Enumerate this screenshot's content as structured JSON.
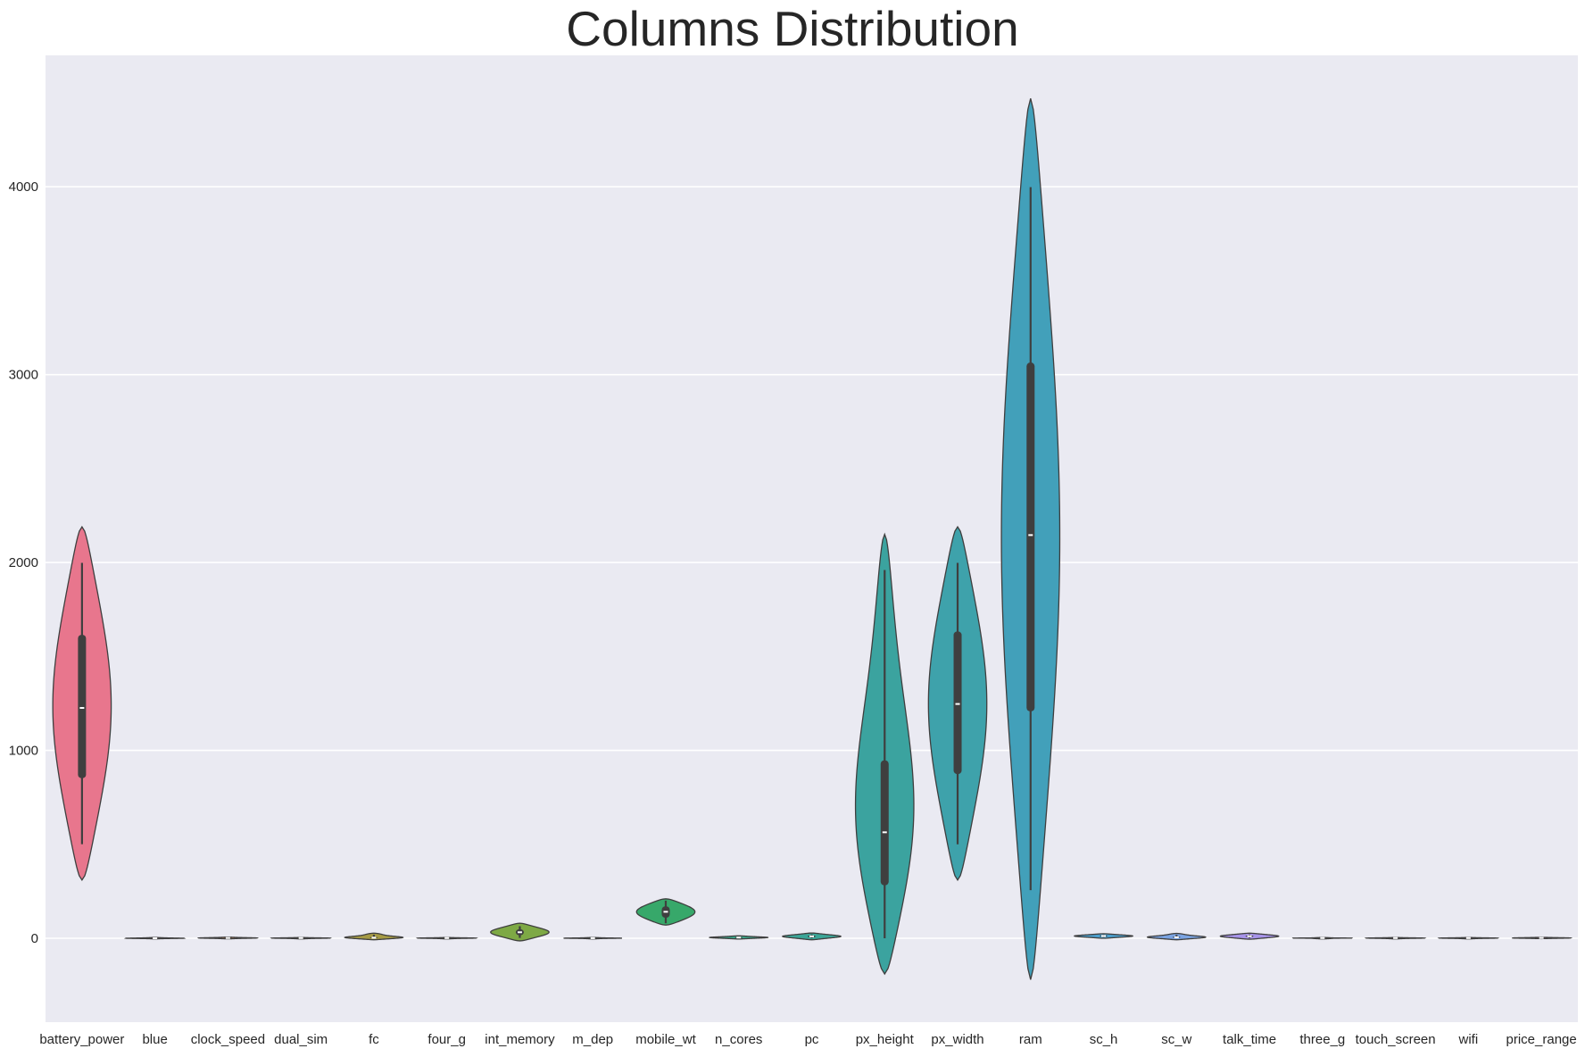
{
  "chart_data": {
    "type": "violin",
    "title": "Columns Distribution",
    "xlabel": "",
    "ylabel": "",
    "ylim": [
      -450,
      4700
    ],
    "yticks": [
      0,
      1000,
      2000,
      3000,
      4000
    ],
    "grid": true,
    "legend": "none",
    "categories": [
      "battery_power",
      "blue",
      "clock_speed",
      "dual_sim",
      "fc",
      "four_g",
      "int_memory",
      "m_dep",
      "mobile_wt",
      "n_cores",
      "pc",
      "px_height",
      "px_width",
      "ram",
      "sc_h",
      "sc_w",
      "talk_time",
      "three_g",
      "touch_screen",
      "wifi",
      "price_range"
    ],
    "series": [
      {
        "category": "battery_power",
        "color": "#e8768d",
        "min": 501,
        "q1": 852,
        "median": 1226,
        "q3": 1615,
        "max": 1998,
        "kde_min": 310,
        "kde_max": 2190
      },
      {
        "category": "blue",
        "color": "#d8847a",
        "min": 0,
        "q1": 0,
        "median": 0,
        "q3": 1,
        "max": 1,
        "kde_min": -3,
        "kde_max": 4
      },
      {
        "category": "clock_speed",
        "color": "#c98b5e",
        "min": 0.5,
        "q1": 0.7,
        "median": 1.5,
        "q3": 2.2,
        "max": 3.0,
        "kde_min": -3,
        "kde_max": 6
      },
      {
        "category": "dual_sim",
        "color": "#b79545",
        "min": 0,
        "q1": 0,
        "median": 1,
        "q3": 1,
        "max": 1,
        "kde_min": -3,
        "kde_max": 4
      },
      {
        "category": "fc",
        "color": "#a59a44",
        "min": 0,
        "q1": 1,
        "median": 3,
        "q3": 7,
        "max": 19,
        "kde_min": -8,
        "kde_max": 27
      },
      {
        "category": "four_g",
        "color": "#96a044",
        "min": 0,
        "q1": 0,
        "median": 1,
        "q3": 1,
        "max": 1,
        "kde_min": -3,
        "kde_max": 4
      },
      {
        "category": "int_memory",
        "color": "#7ea945",
        "min": 2,
        "q1": 16,
        "median": 32,
        "q3": 48,
        "max": 64,
        "kde_min": -14,
        "kde_max": 80
      },
      {
        "category": "m_dep",
        "color": "#4fb255",
        "min": 0.1,
        "q1": 0.2,
        "median": 0.5,
        "q3": 0.8,
        "max": 1.0,
        "kde_min": -3,
        "kde_max": 4
      },
      {
        "category": "mobile_wt",
        "color": "#37a86a",
        "min": 80,
        "q1": 109,
        "median": 141,
        "q3": 170,
        "max": 200,
        "kde_min": 70,
        "kde_max": 210
      },
      {
        "category": "n_cores",
        "color": "#39a88a",
        "min": 1,
        "q1": 3,
        "median": 4,
        "q3": 7,
        "max": 8,
        "kde_min": -4,
        "kde_max": 13
      },
      {
        "category": "pc",
        "color": "#3aa597",
        "min": 0,
        "q1": 5,
        "median": 10,
        "q3": 15,
        "max": 20,
        "kde_min": -8,
        "kde_max": 28
      },
      {
        "category": "px_height",
        "color": "#3ba39f",
        "min": 0,
        "q1": 282,
        "median": 564,
        "q3": 947,
        "max": 1960,
        "kde_min": -190,
        "kde_max": 2150
      },
      {
        "category": "px_width",
        "color": "#3ea2ab",
        "min": 500,
        "q1": 874,
        "median": 1247,
        "q3": 1633,
        "max": 1998,
        "kde_min": 310,
        "kde_max": 2190
      },
      {
        "category": "ram",
        "color": "#42a0ba",
        "min": 256,
        "q1": 1208,
        "median": 2146,
        "q3": 3064,
        "max": 3998,
        "kde_min": -220,
        "kde_max": 4470
      },
      {
        "category": "sc_h",
        "color": "#4ba0cf",
        "min": 5,
        "q1": 9,
        "median": 12,
        "q3": 16,
        "max": 19,
        "kde_min": 0,
        "kde_max": 24
      },
      {
        "category": "sc_w",
        "color": "#7aa3e2",
        "min": 0,
        "q1": 2,
        "median": 5,
        "q3": 9,
        "max": 18,
        "kde_min": -8,
        "kde_max": 26
      },
      {
        "category": "talk_time",
        "color": "#a794e9",
        "min": 2,
        "q1": 6,
        "median": 11,
        "q3": 16,
        "max": 20,
        "kde_min": -5,
        "kde_max": 27
      },
      {
        "category": "three_g",
        "color": "#c58be6",
        "min": 0,
        "q1": 1,
        "median": 1,
        "q3": 1,
        "max": 1,
        "kde_min": -3,
        "kde_max": 4
      },
      {
        "category": "touch_screen",
        "color": "#dc7fd8",
        "min": 0,
        "q1": 0,
        "median": 1,
        "q3": 1,
        "max": 1,
        "kde_min": -3,
        "kde_max": 4
      },
      {
        "category": "wifi",
        "color": "#ea7ab8",
        "min": 0,
        "q1": 0,
        "median": 1,
        "q3": 1,
        "max": 1,
        "kde_min": -3,
        "kde_max": 4
      },
      {
        "category": "price_range",
        "color": "#ed7799",
        "min": 0,
        "q1": 0.75,
        "median": 1.5,
        "q3": 2.25,
        "max": 3,
        "kde_min": -2,
        "kde_max": 5
      }
    ]
  }
}
